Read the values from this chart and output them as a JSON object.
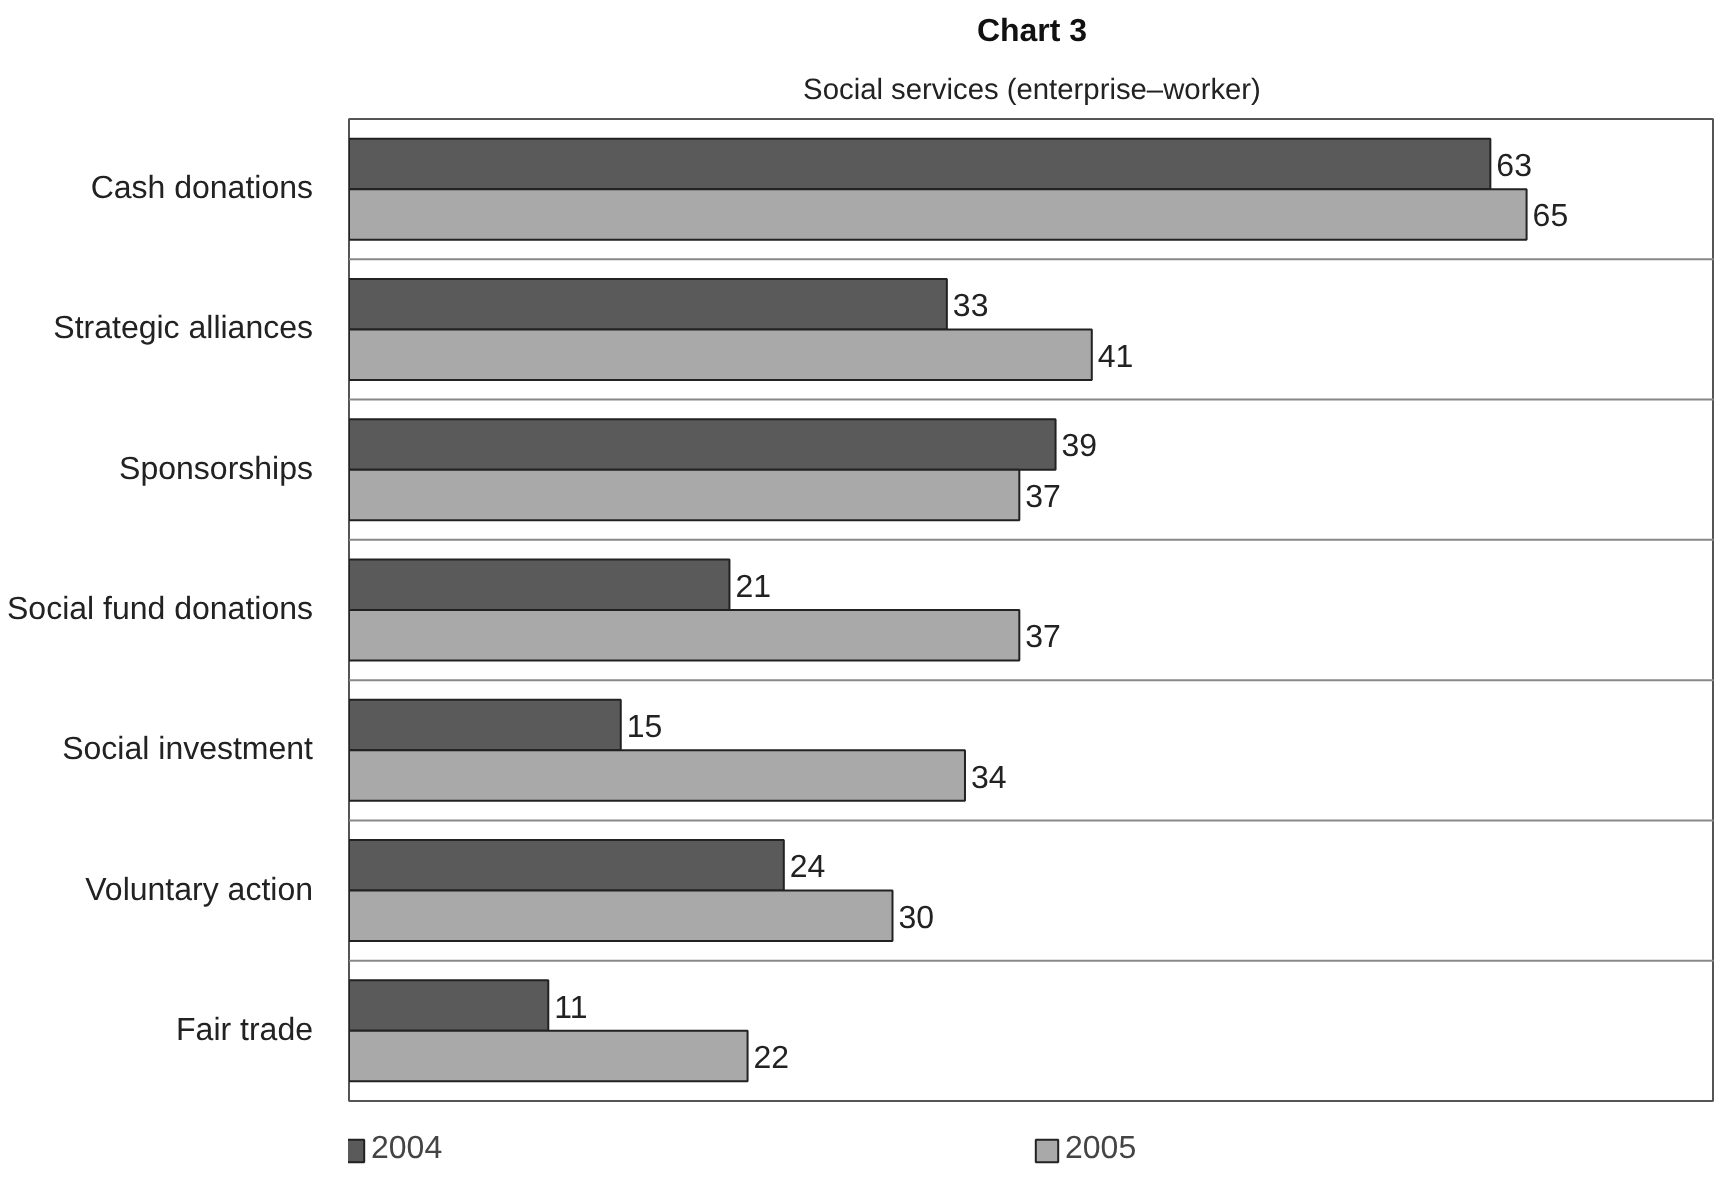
{
  "chart_data": {
    "type": "bar",
    "orientation": "horizontal",
    "title": "Chart 3",
    "subtitle": "Social services (enterprise–worker)",
    "categories": [
      "Cash donations",
      "Strategic alliances",
      "Sponsorships",
      "Social fund donations",
      "Social investment",
      "Voluntary action",
      "Fair trade"
    ],
    "series": [
      {
        "name": "2004",
        "color": "#5a5a5a",
        "values": [
          63,
          33,
          39,
          21,
          15,
          24,
          11
        ]
      },
      {
        "name": "2005",
        "color": "#a9a9a9",
        "values": [
          65,
          41,
          37,
          37,
          34,
          30,
          22
        ]
      }
    ],
    "data_labels": true,
    "grid": "y",
    "legend": "bottom",
    "tick_labels": "y"
  }
}
